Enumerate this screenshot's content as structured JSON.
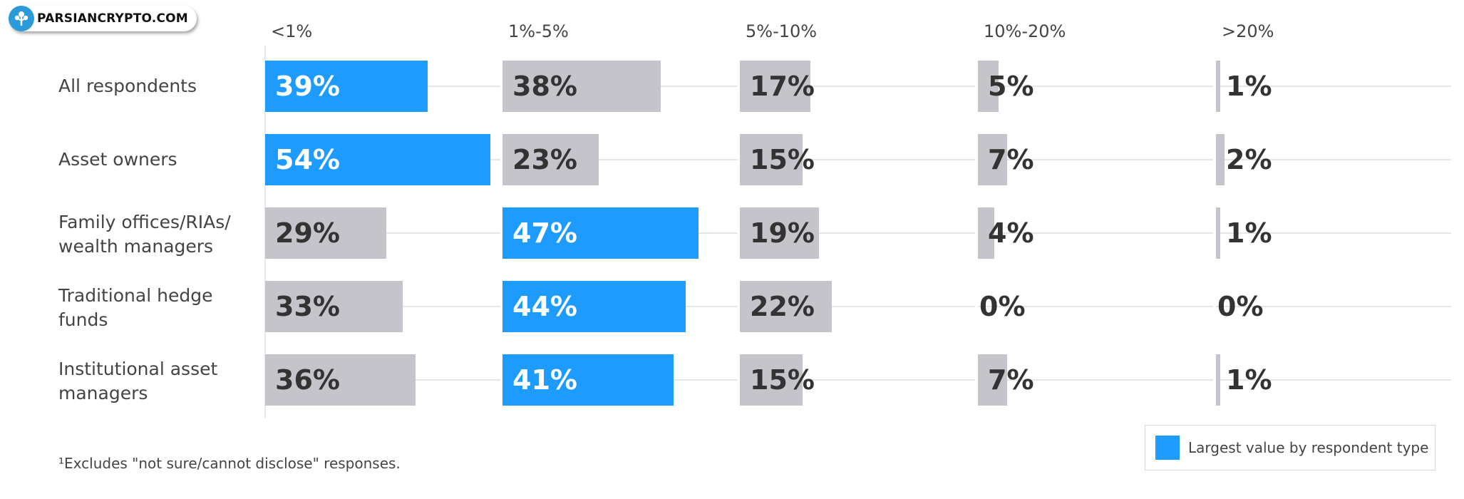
{
  "watermark": {
    "text": "PARSIANCRYPTO.COM",
    "icon": "tree-logo-icon"
  },
  "chart_data": {
    "type": "bar",
    "columns": [
      "<1%",
      "1%-5%",
      "5%-10%",
      "10%-20%",
      ">20%"
    ],
    "categories": [
      [
        "All respondents"
      ],
      [
        "Asset owners"
      ],
      [
        "Family offices/RIAs/",
        "wealth managers"
      ],
      [
        "Traditional hedge",
        "funds"
      ],
      [
        "Institutional asset",
        "managers"
      ]
    ],
    "series": [
      {
        "values": [
          39,
          38,
          17,
          5,
          1
        ]
      },
      {
        "values": [
          54,
          23,
          15,
          7,
          2
        ]
      },
      {
        "values": [
          29,
          47,
          19,
          4,
          1
        ]
      },
      {
        "values": [
          33,
          44,
          22,
          0,
          0
        ]
      },
      {
        "values": [
          36,
          41,
          15,
          7,
          1
        ]
      }
    ],
    "value_suffix": "%",
    "highlight_column_per_row": [
      0,
      0,
      1,
      1,
      1
    ],
    "colors": {
      "highlight": "#1e9bff",
      "default": "#c4c4ca",
      "label_on_highlight": "#ffffff",
      "label_default": "#333333",
      "gridline": "#e6e6e6"
    },
    "legend": {
      "label": "Largest value by respondent type",
      "placement": "bottom-right"
    },
    "footnote": "¹Excludes \"not sure/cannot disclose\" responses."
  }
}
